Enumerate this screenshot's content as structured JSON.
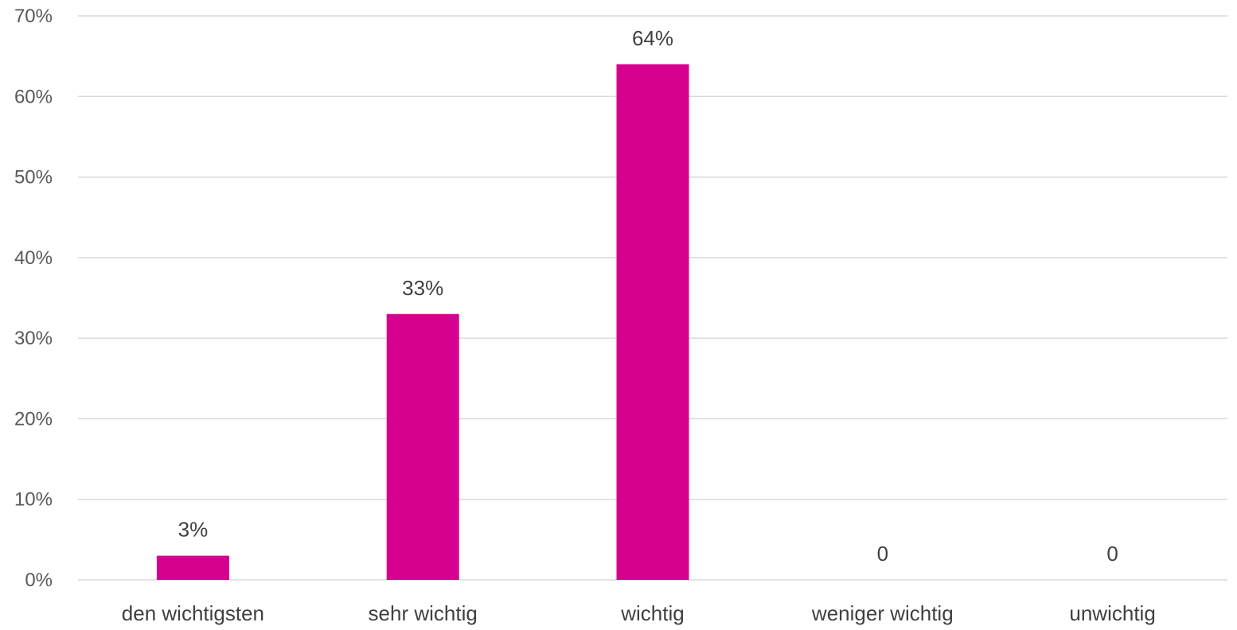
{
  "chart_data": {
    "type": "bar",
    "categories": [
      "den wichtigsten",
      "sehr wichtig",
      "wichtig",
      "weniger wichtig",
      "unwichtig"
    ],
    "values": [
      3,
      33,
      64,
      0,
      0
    ],
    "data_labels": [
      "3%",
      "33%",
      "64%",
      "0",
      "0"
    ],
    "ylim": [
      0,
      70
    ],
    "yticks": [
      0,
      10,
      20,
      30,
      40,
      50,
      60,
      70
    ],
    "ytick_labels": [
      "0%",
      "10%",
      "20%",
      "30%",
      "40%",
      "50%",
      "60%",
      "70%"
    ],
    "title": "",
    "xlabel": "",
    "ylabel": "",
    "grid": true,
    "legend": "none",
    "bar_color": "#d6008f"
  }
}
